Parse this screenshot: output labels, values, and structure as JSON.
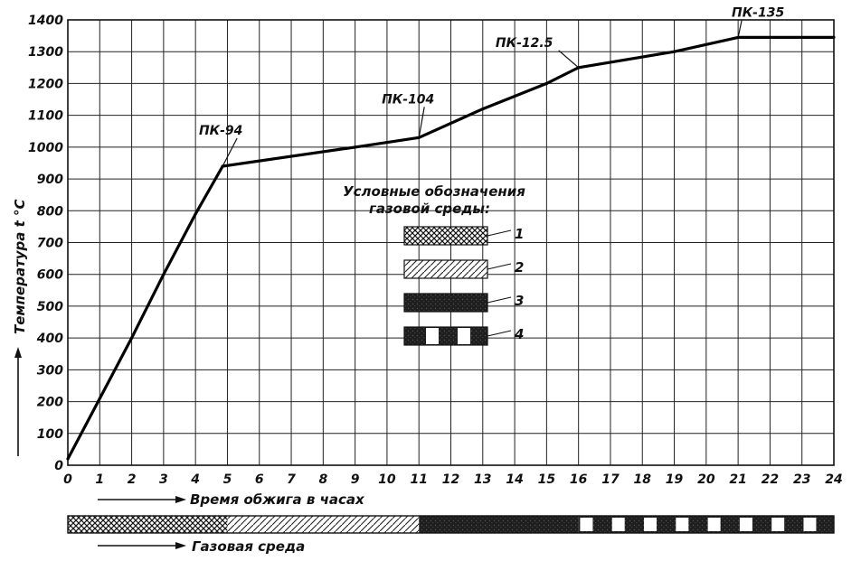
{
  "chart_data": {
    "type": "line",
    "title": "",
    "xlabel": "Время обжига в часах",
    "ylabel": "Температура t °C",
    "xlim": [
      0,
      24
    ],
    "ylim": [
      0,
      1400
    ],
    "x_ticks": [
      "0",
      "1",
      "2",
      "3",
      "4",
      "5",
      "6",
      "7",
      "8",
      "9",
      "10",
      "11",
      "12",
      "13",
      "14",
      "15",
      "16",
      "17",
      "18",
      "19",
      "20",
      "21",
      "22",
      "23",
      "24"
    ],
    "y_ticks": [
      "0",
      "100",
      "200",
      "300",
      "400",
      "500",
      "600",
      "700",
      "800",
      "900",
      "1000",
      "1100",
      "1200",
      "1300",
      "1400"
    ],
    "grid": true,
    "series": [
      {
        "x": [
          0,
          1,
          2,
          3,
          4,
          4.85,
          9,
          11,
          13,
          15,
          16,
          19,
          21,
          24
        ],
        "y": [
          20,
          210,
          400,
          600,
          790,
          940,
          1000,
          1030,
          1120,
          1200,
          1250,
          1300,
          1345,
          1345
        ]
      }
    ],
    "annotations": [
      {
        "text": "ПК-94",
        "x": 4.85,
        "y": 940
      },
      {
        "text": "ПК-104",
        "x": 11,
        "y": 1030
      },
      {
        "text": "ПК-12.5",
        "x": 16,
        "y": 1250
      },
      {
        "text": "ПК-135",
        "x": 21,
        "y": 1345
      }
    ],
    "legend": {
      "title_line1": "Условные обозначения",
      "title_line2": "газовой среды:",
      "items": [
        {
          "label": "1",
          "pattern": "crosshatch"
        },
        {
          "label": "2",
          "pattern": "diagonal"
        },
        {
          "label": "3",
          "pattern": "dark"
        },
        {
          "label": "4",
          "pattern": "dark-with-white-blocks"
        }
      ],
      "placement": "center"
    },
    "gas_strip": {
      "label": "Газовая среда",
      "segments": [
        {
          "from": 0,
          "to": 5,
          "pattern": "crosshatch"
        },
        {
          "from": 5,
          "to": 11,
          "pattern": "diagonal"
        },
        {
          "from": 11,
          "to": 16,
          "pattern": "dark"
        },
        {
          "from": 16,
          "to": 24,
          "pattern": "dark-with-white-blocks"
        }
      ]
    }
  }
}
